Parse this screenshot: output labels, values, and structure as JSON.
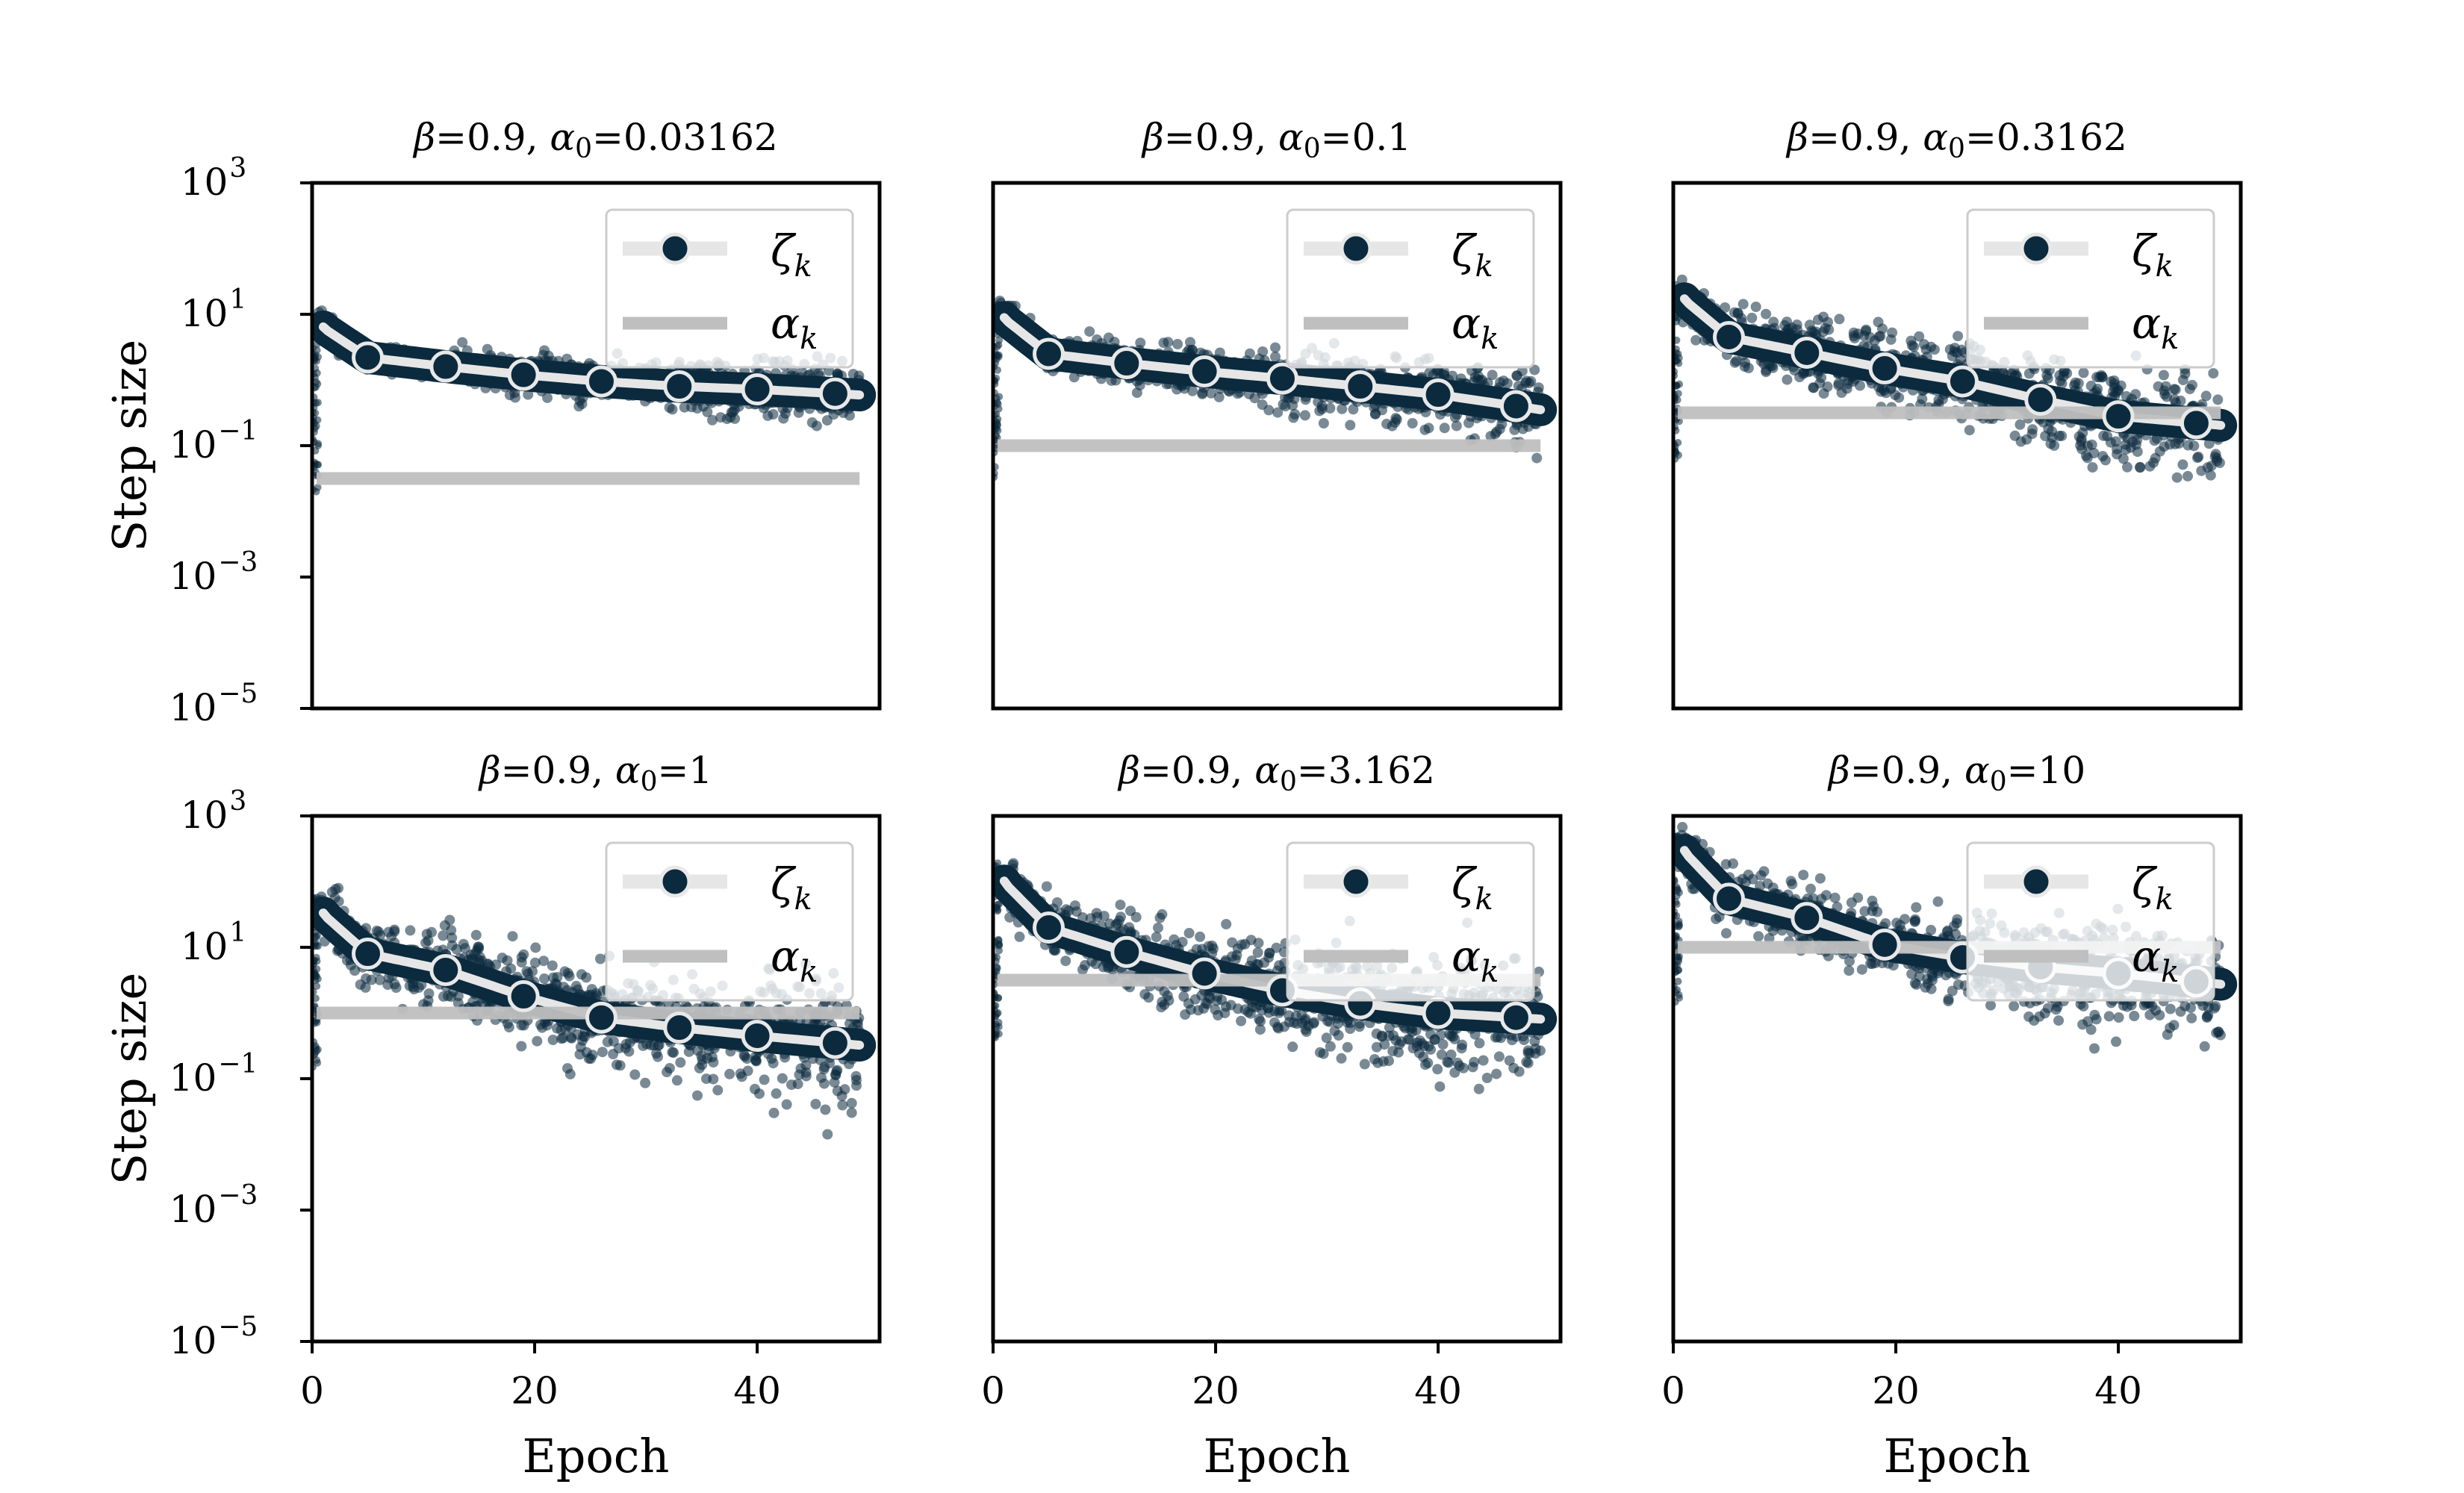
{
  "chart_data": {
    "type": "line",
    "layout": {
      "rows": 2,
      "cols": 3
    },
    "xlabel": "Epoch",
    "ylabel": "Step size",
    "xlim": [
      0,
      51
    ],
    "xticks": [
      0,
      20,
      40
    ],
    "y_scale": "log",
    "ylim": [
      1e-05,
      1000
    ],
    "yticks": [
      {
        "value": 1000,
        "base": "10",
        "exp": "3"
      },
      {
        "value": 10,
        "base": "10",
        "exp": "1"
      },
      {
        "value": 0.1,
        "base": "10",
        "exp": "−1"
      },
      {
        "value": 0.001,
        "base": "10",
        "exp": "−3"
      },
      {
        "value": 1e-05,
        "base": "10",
        "exp": "−5"
      }
    ],
    "legend": {
      "placement": "upper right",
      "entries": [
        {
          "symbol": "ζ",
          "sub": "k"
        },
        {
          "symbol": "α",
          "sub": "k"
        }
      ]
    },
    "colors": {
      "zeta": "#0b2a3e",
      "zeta_band": "#e6e6e6",
      "alpha": "#bfbfbf"
    },
    "marker_epochs": [
      5,
      12,
      19,
      26,
      33,
      40,
      47
    ],
    "panels": [
      {
        "title": {
          "beta": "β",
          "beta_value": "=0.9, ",
          "alpha": "α",
          "sub": "0",
          "alpha_value": "=0.03162"
        },
        "alpha0": 0.03162,
        "zeta": {
          "start": 10,
          "values": [
            2.2,
            1.6,
            1.2,
            0.95,
            0.8,
            0.72,
            0.62
          ]
        },
        "scatter_spread": 0.15
      },
      {
        "title": {
          "beta": "β",
          "beta_value": "=0.9, ",
          "alpha": "α",
          "sub": "0",
          "alpha_value": "=0.1"
        },
        "alpha0": 0.1,
        "zeta": {
          "start": 15,
          "values": [
            2.5,
            1.8,
            1.35,
            1.05,
            0.8,
            0.6,
            0.4
          ]
        },
        "scatter_spread": 0.2
      },
      {
        "title": {
          "beta": "β",
          "beta_value": "=0.9, ",
          "alpha": "α",
          "sub": "0",
          "alpha_value": "=0.3162"
        },
        "alpha0": 0.3162,
        "zeta": {
          "start": 30,
          "values": [
            4.5,
            2.6,
            1.5,
            0.95,
            0.5,
            0.28,
            0.22
          ]
        },
        "scatter_spread": 0.3
      },
      {
        "title": {
          "beta": "β",
          "beta_value": "=0.9, ",
          "alpha": "α",
          "sub": "0",
          "alpha_value": "=1"
        },
        "alpha0": 1,
        "zeta": {
          "start": 60,
          "values": [
            8,
            4.5,
            1.8,
            0.85,
            0.6,
            0.45,
            0.35
          ]
        },
        "scatter_spread": 0.35
      },
      {
        "title": {
          "beta": "β",
          "beta_value": "=0.9, ",
          "alpha": "α",
          "sub": "0",
          "alpha_value": "=3.162"
        },
        "alpha0": 3.162,
        "zeta": {
          "start": 200,
          "values": [
            20,
            8.5,
            4,
            2.2,
            1.4,
            1.0,
            0.85
          ]
        },
        "scatter_spread": 0.35
      },
      {
        "title": {
          "beta": "β",
          "beta_value": "=0.9, ",
          "alpha": "α",
          "sub": "0",
          "alpha_value": "=10"
        },
        "alpha0": 10,
        "zeta": {
          "start": 600,
          "values": [
            55,
            28,
            11,
            7,
            5,
            4,
            3
          ]
        },
        "scatter_spread": 0.3
      }
    ]
  }
}
